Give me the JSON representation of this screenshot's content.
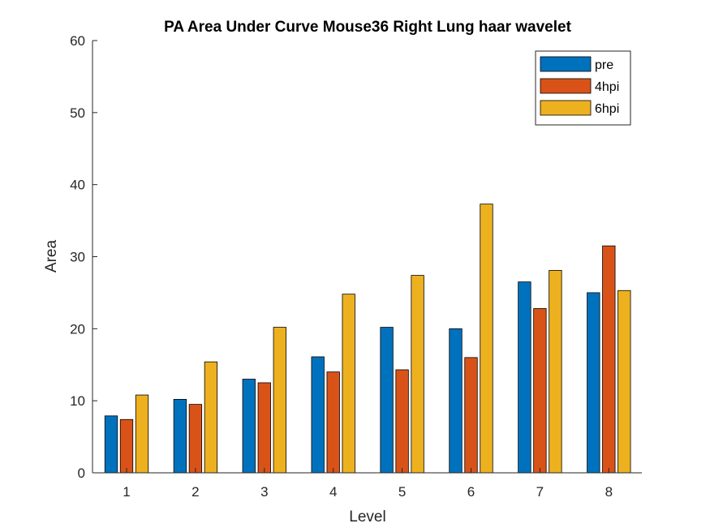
{
  "chart_data": {
    "type": "bar",
    "title": "PA Area Under Curve Mouse36 Right Lung haar wavelet",
    "xlabel": "Level",
    "ylabel": "Area",
    "ylim": [
      0,
      60
    ],
    "yticks": [
      "0",
      "10",
      "20",
      "30",
      "40",
      "50",
      "60"
    ],
    "categories": [
      "1",
      "2",
      "3",
      "4",
      "5",
      "6",
      "7",
      "8"
    ],
    "legend_position": "top-right",
    "grid": false,
    "series": [
      {
        "name": "pre",
        "color": "#0072BD",
        "values": [
          7.9,
          10.2,
          13.0,
          16.1,
          20.2,
          20.0,
          26.5,
          25.0
        ]
      },
      {
        "name": "4hpi",
        "color": "#D95319",
        "values": [
          7.4,
          9.5,
          12.5,
          14.0,
          14.3,
          16.0,
          22.8,
          31.5
        ]
      },
      {
        "name": "6hpi",
        "color": "#EDB120",
        "values": [
          10.8,
          15.4,
          20.2,
          24.8,
          27.4,
          37.3,
          28.1,
          25.3
        ]
      }
    ]
  }
}
